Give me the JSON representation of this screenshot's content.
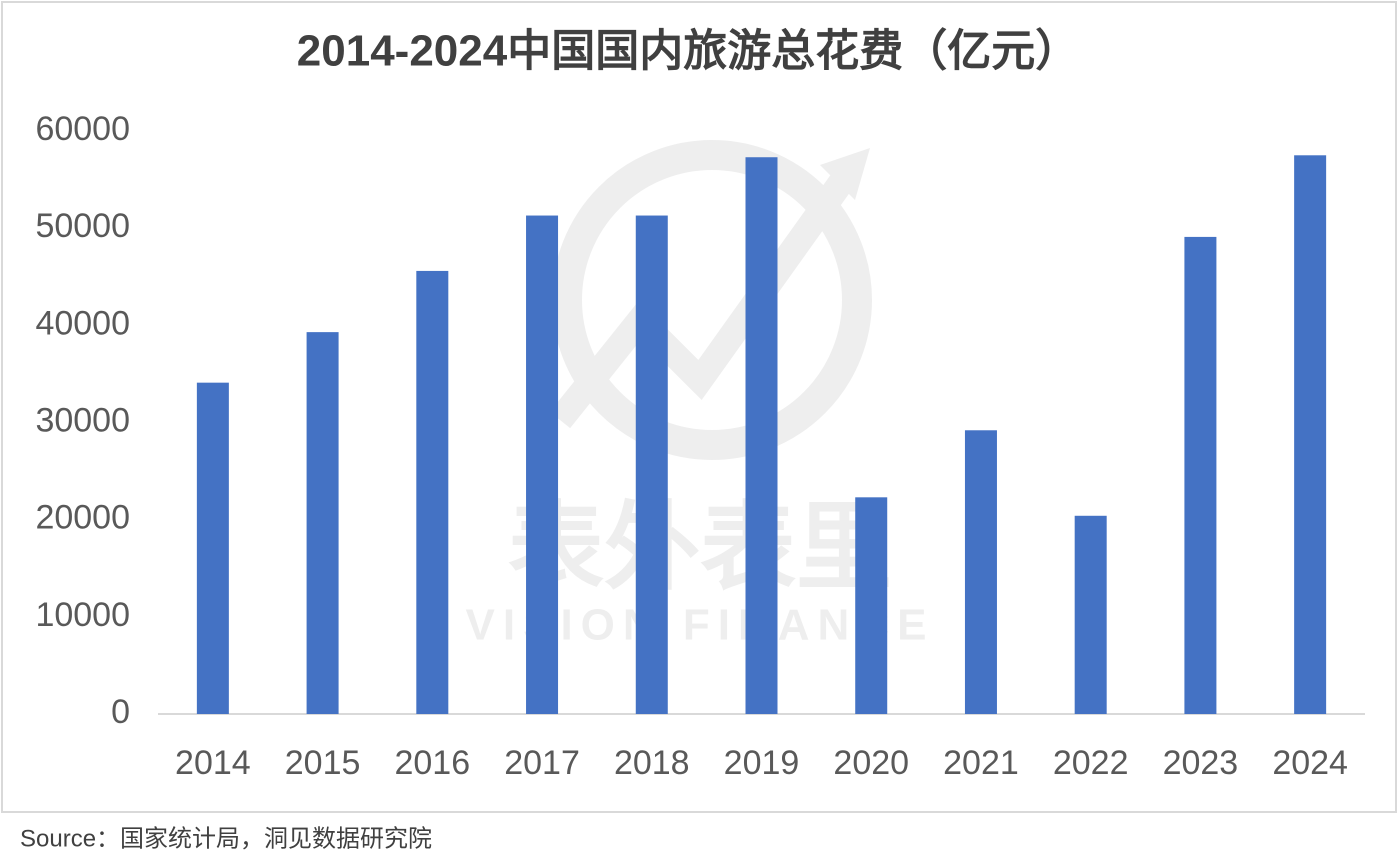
{
  "chart_data": {
    "type": "bar",
    "title": "2014-2024中国国内旅游总花费（亿元）",
    "categories": [
      "2014",
      "2015",
      "2016",
      "2017",
      "2018",
      "2019",
      "2020",
      "2021",
      "2022",
      "2023",
      "2024"
    ],
    "values": [
      34100,
      39300,
      45600,
      51300,
      51300,
      57300,
      22300,
      29200,
      20400,
      49100,
      57500
    ],
    "color": "#4472c4",
    "ylim": [
      0,
      60000
    ],
    "yticks": [
      0,
      10000,
      20000,
      30000,
      40000,
      50000,
      60000
    ],
    "grid": false,
    "watermark": [
      "表外表里",
      "VISION FINANCE"
    ],
    "source": "Source：国家统计局，洞见数据研究院"
  }
}
